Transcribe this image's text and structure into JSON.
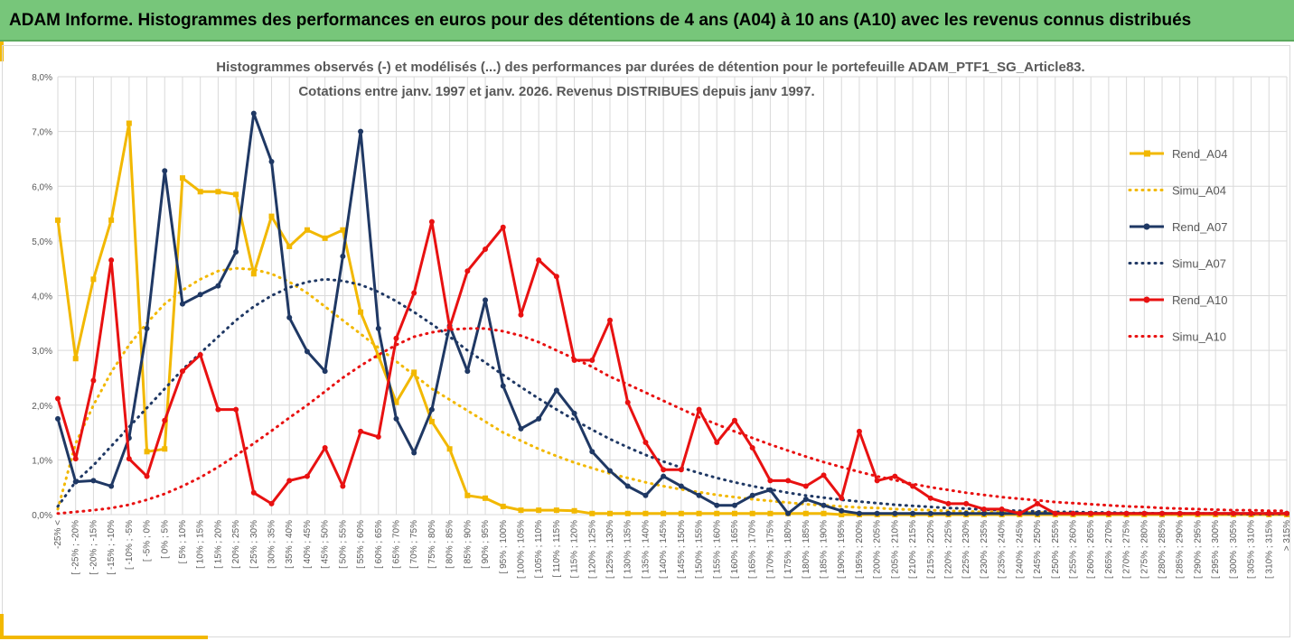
{
  "header": {
    "title": "ADAM Informe. Histogrammes des performances en euros pour des détentions de 4 ans (A04) à 10 ans (A10) avec les revenus connus distribués"
  },
  "colors": {
    "banner": "#77c67a",
    "accent": "#f2b800",
    "A04": "#f2b800",
    "A07": "#1f3864",
    "A10": "#e81111",
    "grid": "#d9d9d9",
    "text": "#595959"
  },
  "chart_data": {
    "type": "line",
    "title_line1": "Histogrammes observés (-) et modélisés (...) des performances par durées de détention pour  le portefeuille ADAM_PTF1_SG_Article83.",
    "title_line2": "Cotations entre janv. 1997 et janv. 2026. Revenus DISTRIBUES depuis janv 1997.",
    "ylim": [
      0,
      8
    ],
    "yticks": [
      "0,0%",
      "1,0%",
      "2,0%",
      "3,0%",
      "4,0%",
      "5,0%",
      "6,0%",
      "7,0%",
      "8,0%"
    ],
    "categories": [
      "-25% <",
      "[ -25% ; -20%",
      "[ -20% ; -15%",
      "[ -15% ; -10%",
      "[ -10% ; -5%",
      "[ -5% ; 0%",
      "[ 0% ; 5%",
      "[ 5% ; 10%",
      "[ 10% ; 15%",
      "[ 15% ; 20%",
      "[ 20% ; 25%",
      "[ 25% ; 30%",
      "[ 30% ; 35%",
      "[ 35% ; 40%",
      "[ 40% ; 45%",
      "[ 45% ; 50%",
      "[ 50% ; 55%",
      "[ 55% ; 60%",
      "[ 60% ; 65%",
      "[ 65% ; 70%",
      "[ 70% ; 75%",
      "[ 75% ; 80%",
      "[ 80% ; 85%",
      "[ 85% ; 90%",
      "[ 90% ; 95%",
      "[ 95% ; 100%",
      "[ 100% ; 105%",
      "[ 105% ; 110%",
      "[ 110% ; 115%",
      "[ 115% ; 120%",
      "[ 120% ; 125%",
      "[ 125% ; 130%",
      "[ 130% ; 135%",
      "[ 135% ; 140%",
      "[ 140% ; 145%",
      "[ 145% ; 150%",
      "[ 150% ; 155%",
      "[ 155% ; 160%",
      "[ 160% ; 165%",
      "[ 165% ; 170%",
      "[ 170% ; 175%",
      "[ 175% ; 180%",
      "[ 180% ; 185%",
      "[ 185% ; 190%",
      "[ 190% ; 195%",
      "[ 195% ; 200%",
      "[ 200% ; 205%",
      "[ 205% ; 210%",
      "[ 210% ; 215%",
      "[ 215% ; 220%",
      "[ 220% ; 225%",
      "[ 225% ; 230%",
      "[ 230% ; 235%",
      "[ 235% ; 240%",
      "[ 240% ; 245%",
      "[ 245% ; 250%",
      "[ 250% ; 255%",
      "[ 255% ; 260%",
      "[ 260% ; 265%",
      "[ 265% ; 270%",
      "[ 270% ; 275%",
      "[ 275% ; 280%",
      "[ 280% ; 285%",
      "[ 285% ; 290%",
      "[ 290% ; 295%",
      "[ 295% ; 300%",
      "[ 300% ; 305%",
      "[ 305% ; 310%",
      "[ 310% ; 315%",
      "> 315%"
    ],
    "series": [
      {
        "name": "Rend_A04",
        "style": "solid",
        "color": "#f2b800",
        "marker": "square",
        "values": [
          5.38,
          2.85,
          4.3,
          5.38,
          7.15,
          1.15,
          1.2,
          6.15,
          5.9,
          5.9,
          5.85,
          4.4,
          5.45,
          4.9,
          5.2,
          5.05,
          5.2,
          3.7,
          2.9,
          2.05,
          2.6,
          1.7,
          1.2,
          0.35,
          0.3,
          0.15,
          0.08,
          0.08,
          0.08,
          0.07,
          0.02,
          0.02,
          0.02,
          0.02,
          0.02,
          0.02,
          0.02,
          0.02,
          0.02,
          0.02,
          0.02,
          0.02,
          0.02,
          0.02,
          0.0,
          0.0,
          0.0,
          0.0,
          0.0,
          0.0,
          0.0,
          0.0,
          0.0,
          0.0,
          0.0,
          0.0,
          0.0,
          0.0,
          0.0,
          0.0,
          0.0,
          0.0,
          0.0,
          0.0,
          0.0,
          0.0,
          0.0,
          0.0,
          0.0,
          0.0
        ]
      },
      {
        "name": "Simu_A04",
        "style": "dotted",
        "color": "#f2b800",
        "marker": "none",
        "values": [
          0.1,
          1.3,
          2.0,
          2.6,
          3.1,
          3.5,
          3.85,
          4.1,
          4.3,
          4.45,
          4.5,
          4.48,
          4.4,
          4.25,
          4.05,
          3.8,
          3.55,
          3.3,
          3.05,
          2.8,
          2.55,
          2.3,
          2.1,
          1.9,
          1.7,
          1.5,
          1.35,
          1.2,
          1.07,
          0.95,
          0.85,
          0.75,
          0.67,
          0.59,
          0.52,
          0.46,
          0.41,
          0.36,
          0.32,
          0.28,
          0.25,
          0.22,
          0.19,
          0.17,
          0.15,
          0.13,
          0.12,
          0.1,
          0.09,
          0.08,
          0.07,
          0.06,
          0.05,
          0.05,
          0.04,
          0.04,
          0.03,
          0.03,
          0.02,
          0.02,
          0.02,
          0.02,
          0.01,
          0.01,
          0.01,
          0.01,
          0.01,
          0.01,
          0.01,
          0.01
        ]
      },
      {
        "name": "Rend_A07",
        "style": "solid",
        "color": "#1f3864",
        "marker": "circle",
        "values": [
          1.75,
          0.6,
          0.62,
          0.52,
          1.4,
          3.4,
          6.28,
          3.85,
          4.02,
          4.18,
          4.8,
          7.33,
          6.45,
          3.6,
          2.98,
          2.62,
          4.72,
          7.0,
          3.4,
          1.75,
          1.13,
          1.92,
          3.45,
          2.62,
          3.92,
          2.35,
          1.57,
          1.75,
          2.27,
          1.85,
          1.15,
          0.8,
          0.52,
          0.35,
          0.7,
          0.52,
          0.35,
          0.17,
          0.17,
          0.35,
          0.45,
          0.02,
          0.28,
          0.17,
          0.07,
          0.02,
          0.02,
          0.02,
          0.02,
          0.02,
          0.02,
          0.02,
          0.02,
          0.02,
          0.02,
          0.02,
          0.02,
          0.02,
          0.02,
          0.02,
          0.02,
          0.02,
          0.02,
          0.02,
          0.02,
          0.02,
          0.02,
          0.02,
          0.02,
          0.02
        ]
      },
      {
        "name": "Simu_A07",
        "style": "dotted",
        "color": "#1f3864",
        "marker": "none",
        "values": [
          0.15,
          0.6,
          0.9,
          1.25,
          1.6,
          1.95,
          2.3,
          2.65,
          2.95,
          3.25,
          3.55,
          3.8,
          4.0,
          4.15,
          4.25,
          4.3,
          4.27,
          4.2,
          4.07,
          3.9,
          3.7,
          3.48,
          3.25,
          3.0,
          2.78,
          2.55,
          2.33,
          2.12,
          1.92,
          1.73,
          1.55,
          1.38,
          1.23,
          1.09,
          0.97,
          0.86,
          0.76,
          0.67,
          0.59,
          0.52,
          0.46,
          0.4,
          0.35,
          0.31,
          0.27,
          0.24,
          0.21,
          0.18,
          0.16,
          0.14,
          0.12,
          0.11,
          0.09,
          0.08,
          0.07,
          0.06,
          0.05,
          0.05,
          0.04,
          0.04,
          0.03,
          0.03,
          0.02,
          0.02,
          0.02,
          0.02,
          0.01,
          0.01,
          0.01,
          0.01
        ]
      },
      {
        "name": "Rend_A10",
        "style": "solid",
        "color": "#e81111",
        "marker": "circle",
        "values": [
          2.12,
          1.02,
          2.45,
          4.65,
          1.02,
          0.7,
          1.72,
          2.62,
          2.92,
          1.92,
          1.92,
          0.4,
          0.2,
          0.62,
          0.7,
          1.22,
          0.52,
          1.52,
          1.42,
          3.22,
          4.05,
          5.35,
          3.42,
          4.45,
          4.85,
          5.25,
          3.65,
          4.65,
          4.35,
          2.82,
          2.82,
          3.55,
          2.05,
          1.32,
          0.82,
          0.82,
          1.92,
          1.32,
          1.72,
          1.22,
          0.62,
          0.62,
          0.52,
          0.72,
          0.3,
          1.52,
          0.62,
          0.7,
          0.52,
          0.3,
          0.2,
          0.2,
          0.1,
          0.1,
          0.02,
          0.2,
          0.02,
          0.02,
          0.02,
          0.02,
          0.02,
          0.02,
          0.02,
          0.02,
          0.02,
          0.02,
          0.02,
          0.02,
          0.02,
          0.02
        ]
      },
      {
        "name": "Simu_A10",
        "style": "dotted",
        "color": "#e81111",
        "marker": "none",
        "values": [
          0.02,
          0.05,
          0.08,
          0.12,
          0.18,
          0.27,
          0.38,
          0.52,
          0.68,
          0.87,
          1.08,
          1.3,
          1.53,
          1.77,
          2.0,
          2.25,
          2.5,
          2.72,
          2.92,
          3.1,
          3.25,
          3.33,
          3.38,
          3.4,
          3.4,
          3.35,
          3.27,
          3.15,
          3.0,
          2.85,
          2.7,
          2.52,
          2.38,
          2.23,
          2.08,
          1.93,
          1.78,
          1.65,
          1.52,
          1.4,
          1.28,
          1.17,
          1.06,
          0.96,
          0.87,
          0.78,
          0.7,
          0.63,
          0.56,
          0.5,
          0.45,
          0.4,
          0.36,
          0.32,
          0.29,
          0.26,
          0.23,
          0.21,
          0.19,
          0.17,
          0.15,
          0.14,
          0.12,
          0.11,
          0.1,
          0.09,
          0.08,
          0.08,
          0.07,
          0.07
        ]
      }
    ],
    "legend": [
      "Rend_A04",
      "Simu_A04",
      "Rend_A07",
      "Simu_A07",
      "Rend_A10",
      "Simu_A10"
    ],
    "legend_position": "right"
  }
}
